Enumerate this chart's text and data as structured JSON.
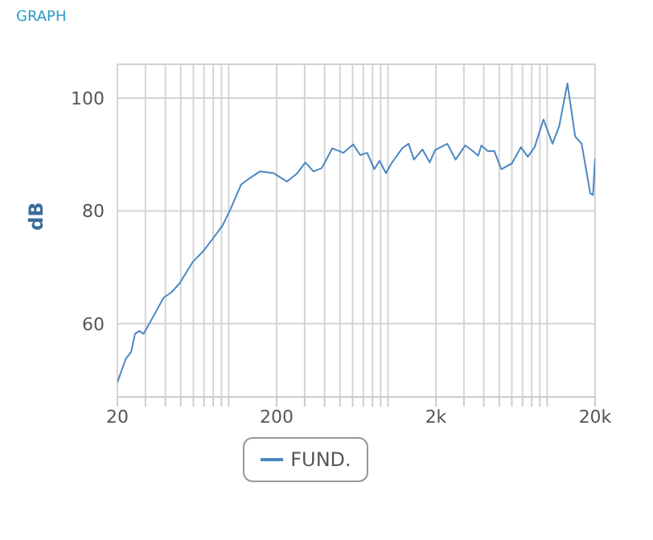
{
  "chart_data": {
    "type": "line",
    "title": "GRAPH",
    "ylabel": "dB",
    "x": [
      20,
      22.6,
      24.4,
      25.8,
      27.5,
      29.2,
      32,
      39,
      43.8,
      49,
      59.7,
      69.5,
      78.6,
      91.5,
      102.6,
      119.8,
      134,
      157,
      191,
      232,
      270,
      303,
      341,
      384,
      448,
      525,
      604,
      670,
      740,
      822,
      886,
      972,
      1050,
      1228,
      1348,
      1457,
      1648,
      1830,
      1979,
      2363,
      2660,
      3060,
      3418,
      3690,
      3860,
      4240,
      4660,
      5150,
      6000,
      6840,
      7560,
      8340,
      9480,
      10800,
      11900,
      13400,
      15000,
      16460,
      18650,
      19400,
      20000
    ],
    "series": [
      {
        "name": "FUND.",
        "color": "#4a87c2",
        "values": [
          49.6,
          53.8,
          55,
          58.2,
          58.7,
          58.2,
          60.2,
          64.6,
          65.6,
          67.1,
          71,
          72.9,
          74.9,
          77.4,
          80.3,
          84.7,
          85.7,
          87,
          86.7,
          85.2,
          86.7,
          88.6,
          87,
          87.6,
          91.1,
          90.3,
          91.8,
          89.9,
          90.3,
          87.4,
          88.9,
          86.7,
          88.4,
          91.1,
          91.9,
          89.1,
          90.9,
          88.6,
          90.8,
          91.9,
          89.1,
          91.6,
          90.6,
          89.8,
          91.6,
          90.6,
          90.6,
          87.4,
          88.4,
          91.3,
          89.6,
          91.3,
          96.2,
          91.9,
          95,
          102.6,
          93.2,
          91.9,
          83.1,
          82.8,
          89.3
        ]
      }
    ],
    "log": "x",
    "xlim": [
      20,
      20000
    ],
    "ylim": [
      47,
      106
    ],
    "xticks": [
      {
        "value": 20,
        "label": "20"
      },
      {
        "value": 30,
        "label": null
      },
      {
        "value": 40,
        "label": null
      },
      {
        "value": 50,
        "label": null
      },
      {
        "value": 60,
        "label": null
      },
      {
        "value": 70,
        "label": null
      },
      {
        "value": 80,
        "label": null
      },
      {
        "value": 90,
        "label": null
      },
      {
        "value": 100,
        "label": null
      },
      {
        "value": 200,
        "label": "200"
      },
      {
        "value": 300,
        "label": null
      },
      {
        "value": 400,
        "label": null
      },
      {
        "value": 500,
        "label": null
      },
      {
        "value": 600,
        "label": null
      },
      {
        "value": 700,
        "label": null
      },
      {
        "value": 800,
        "label": null
      },
      {
        "value": 900,
        "label": null
      },
      {
        "value": 1000,
        "label": null
      },
      {
        "value": 2000,
        "label": "2k"
      },
      {
        "value": 3000,
        "label": null
      },
      {
        "value": 4000,
        "label": null
      },
      {
        "value": 5000,
        "label": null
      },
      {
        "value": 6000,
        "label": null
      },
      {
        "value": 7000,
        "label": null
      },
      {
        "value": 8000,
        "label": null
      },
      {
        "value": 9000,
        "label": null
      },
      {
        "value": 10000,
        "label": null
      },
      {
        "value": 20000,
        "label": "20k"
      }
    ],
    "yticks": [
      60,
      80,
      100
    ],
    "grid": true,
    "legend": "bottom"
  }
}
